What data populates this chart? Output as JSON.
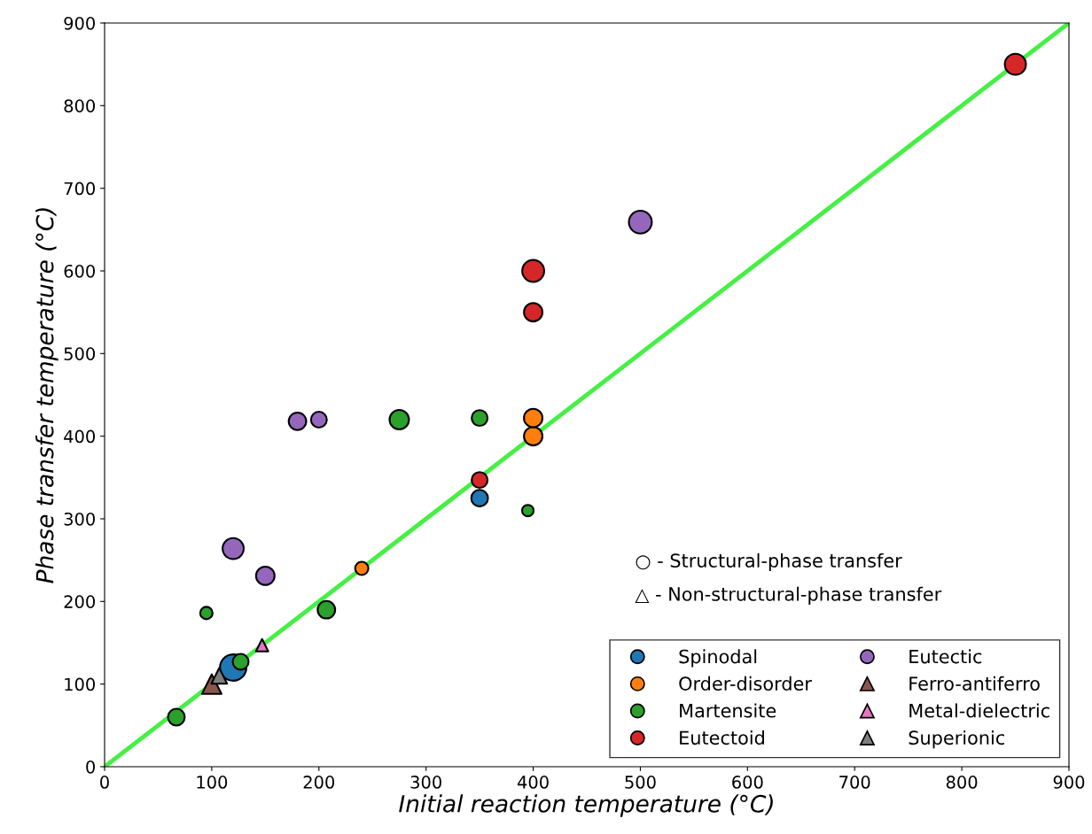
{
  "chart_data": {
    "type": "bubble",
    "xlabel": "Initial reaction temperature (°C)",
    "ylabel": "Phase transfer temperature (°C)",
    "xlim": [
      0,
      900
    ],
    "ylim": [
      0,
      900
    ],
    "xticks": [
      0,
      100,
      200,
      300,
      400,
      500,
      600,
      700,
      800,
      900
    ],
    "yticks": [
      0,
      100,
      200,
      300,
      400,
      500,
      600,
      700,
      800,
      900
    ],
    "grid": false,
    "legend": "bottom right",
    "annotations": [
      "○ - Structural-phase transfer",
      "△ - Non-structural-phase transfer"
    ],
    "series": [
      {
        "type": "line",
        "color": "#44f044",
        "x": [
          0,
          900
        ],
        "values": [
          0,
          900
        ],
        "marker": "none",
        "line_style": "solid"
      },
      {
        "name": "Spinodal",
        "color": "#1f77b4",
        "marker": "circle",
        "x": [
          120,
          350
        ],
        "values": [
          120,
          325
        ],
        "sizes": [
          1,
          0.4
        ]
      },
      {
        "name": "Order-disorder",
        "color": "#ff7f0e",
        "marker": "circle",
        "x": [
          240,
          400,
          400
        ],
        "values": [
          240,
          400,
          422
        ],
        "sizes": [
          0.25,
          0.49,
          0.49
        ]
      },
      {
        "name": "Martensite",
        "color": "#2ca02c",
        "marker": "circle",
        "x": [
          67,
          95,
          127,
          207,
          275,
          350,
          395
        ],
        "values": [
          60,
          186,
          127,
          190,
          420,
          422,
          310
        ],
        "sizes": [
          0.4,
          0.22,
          0.36,
          0.44,
          0.54,
          0.36,
          0.19
        ]
      },
      {
        "name": "Eutectoid",
        "color": "#d62728",
        "marker": "circle",
        "x": [
          350,
          400,
          400,
          850
        ],
        "values": [
          347,
          550,
          600,
          850
        ],
        "sizes": [
          0.36,
          0.49,
          0.69,
          0.64
        ]
      },
      {
        "name": "Eutectic",
        "color": "#9467bd",
        "marker": "circle",
        "x": [
          120,
          150,
          180,
          200,
          500
        ],
        "values": [
          264,
          231,
          418,
          420,
          659
        ],
        "sizes": [
          0.64,
          0.49,
          0.44,
          0.36,
          0.75
        ]
      },
      {
        "name": "Ferro-antiferro",
        "color": "#8c564b",
        "marker": "triangle",
        "x": [
          100
        ],
        "values": [
          100
        ],
        "sizes": [
          0.35
        ]
      },
      {
        "name": "Metal-dielectric",
        "color": "#e377c2",
        "marker": "triangle",
        "x": [
          147
        ],
        "values": [
          147
        ],
        "sizes": [
          0.14
        ]
      },
      {
        "name": "Superionic",
        "color": "#7f7f7f",
        "marker": "triangle",
        "x": [
          107
        ],
        "values": [
          110
        ],
        "sizes": [
          0.23
        ]
      }
    ]
  }
}
